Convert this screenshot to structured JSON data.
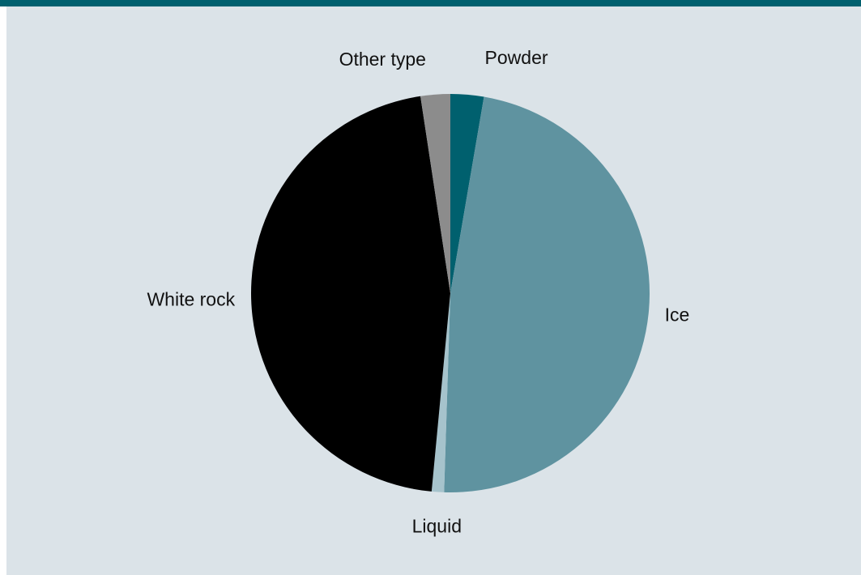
{
  "colors": {
    "top_bar": "#00606e",
    "panel_background": "#dbe3e8"
  },
  "chart_data": {
    "type": "pie",
    "title": "",
    "slices": [
      {
        "label": "Powder",
        "value": 2.7,
        "color": "#00606e"
      },
      {
        "label": "Ice",
        "value": 47.8,
        "color": "#5f93a0"
      },
      {
        "label": "Liquid",
        "value": 1.0,
        "color": "#a6c3cc"
      },
      {
        "label": "White rock",
        "value": 46.1,
        "color": "#000000"
      },
      {
        "label": "Other type",
        "value": 2.4,
        "color": "#8c8c8c"
      }
    ],
    "start_angle": "12 o'clock",
    "direction": "clockwise",
    "legend": "none"
  }
}
